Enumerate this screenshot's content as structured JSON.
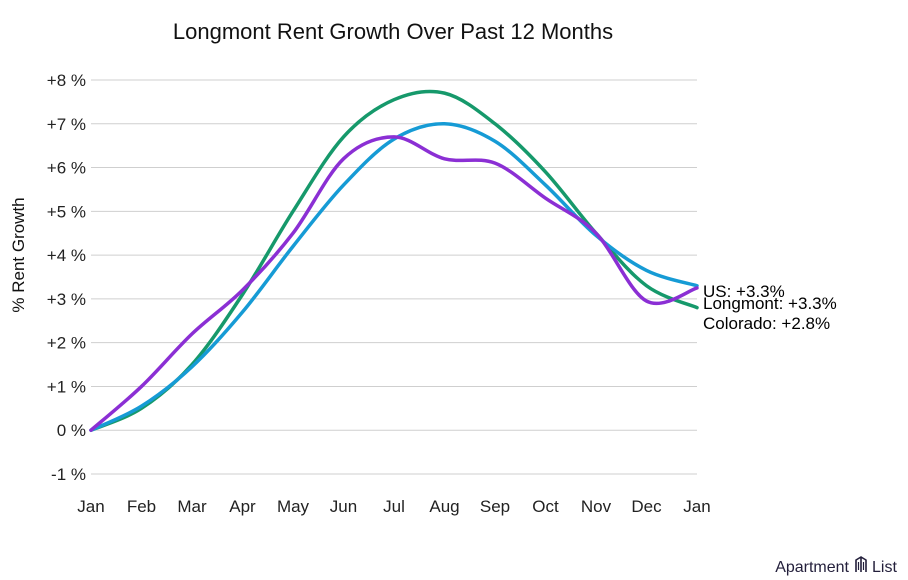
{
  "chart_data": {
    "type": "line",
    "title": "Longmont Rent Growth Over Past 12 Months",
    "xlabel": "",
    "ylabel": "% Rent Growth",
    "categories": [
      "Jan",
      "Feb",
      "Mar",
      "Apr",
      "May",
      "Jun",
      "Jul",
      "Aug",
      "Sep",
      "Oct",
      "Nov",
      "Dec",
      "Jan"
    ],
    "y_ticks": [
      -1,
      0,
      1,
      2,
      3,
      4,
      5,
      6,
      7,
      8
    ],
    "y_tick_labels": [
      "-1 %",
      "0 %",
      "+1 %",
      "+2 %",
      "+3 %",
      "+4 %",
      "+5 %",
      "+6 %",
      "+7 %",
      "+8 %"
    ],
    "ylim": [
      -1,
      8
    ],
    "grid": true,
    "series": [
      {
        "name": "Colorado",
        "color": "#16996b",
        "end_label": "Colorado: +2.8%",
        "values": [
          0.0,
          0.5,
          1.5,
          3.1,
          5.0,
          6.7,
          7.55,
          7.7,
          7.0,
          5.9,
          4.5,
          3.3,
          2.8
        ]
      },
      {
        "name": "US",
        "color": "#169bd5",
        "end_label": "US: +3.3%",
        "values": [
          0.0,
          0.55,
          1.45,
          2.7,
          4.2,
          5.6,
          6.65,
          7.0,
          6.6,
          5.6,
          4.45,
          3.65,
          3.3
        ]
      },
      {
        "name": "Longmont",
        "color": "#8b2fd4",
        "end_label": "Longmont: +3.3%",
        "values": [
          0.0,
          1.0,
          2.2,
          3.2,
          4.5,
          6.2,
          6.7,
          6.2,
          6.1,
          5.3,
          4.5,
          2.95,
          3.25
        ]
      }
    ]
  },
  "brand": {
    "name_left": "Apartment",
    "name_right": "List"
  }
}
